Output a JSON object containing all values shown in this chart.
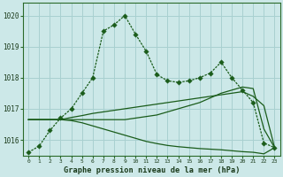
{
  "xlabel": "Graphe pression niveau de la mer (hPa)",
  "bg_color": "#cce8e8",
  "grid_color": "#a8d0d0",
  "line_color": "#1a5c1a",
  "x_values": [
    0,
    1,
    2,
    3,
    4,
    5,
    6,
    7,
    8,
    9,
    10,
    11,
    12,
    13,
    14,
    15,
    16,
    17,
    18,
    19,
    20,
    21,
    22,
    23
  ],
  "line1": [
    1015.6,
    1015.8,
    1016.3,
    1016.7,
    1017.0,
    1017.5,
    1018.0,
    1019.5,
    1019.7,
    1020.0,
    1019.4,
    1018.85,
    1018.1,
    1017.9,
    1017.85,
    1017.9,
    1018.0,
    1018.15,
    1018.5,
    1018.0,
    1017.6,
    1017.2,
    1015.9,
    1015.75
  ],
  "line2": [
    1016.65,
    1016.65,
    1016.65,
    1016.65,
    1016.65,
    1016.65,
    1016.65,
    1016.65,
    1016.65,
    1016.65,
    1016.7,
    1016.75,
    1016.8,
    1016.9,
    1017.0,
    1017.1,
    1017.2,
    1017.35,
    1017.5,
    1017.6,
    1017.7,
    1017.65,
    1016.35,
    1015.75
  ],
  "line3": [
    1016.65,
    1016.65,
    1016.65,
    1016.65,
    1016.72,
    1016.78,
    1016.85,
    1016.9,
    1016.95,
    1017.0,
    1017.05,
    1017.1,
    1017.15,
    1017.2,
    1017.25,
    1017.3,
    1017.35,
    1017.4,
    1017.45,
    1017.5,
    1017.55,
    1017.4,
    1017.1,
    1015.75
  ],
  "line4": [
    1016.65,
    1016.65,
    1016.65,
    1016.65,
    1016.62,
    1016.55,
    1016.45,
    1016.35,
    1016.25,
    1016.15,
    1016.05,
    1015.95,
    1015.88,
    1015.82,
    1015.78,
    1015.75,
    1015.72,
    1015.7,
    1015.68,
    1015.65,
    1015.62,
    1015.6,
    1015.55,
    1015.75
  ],
  "ylim": [
    1015.5,
    1020.4
  ],
  "yticks": [
    1016,
    1017,
    1018,
    1019,
    1020
  ],
  "xticks": [
    0,
    1,
    2,
    3,
    4,
    5,
    6,
    7,
    8,
    9,
    10,
    11,
    12,
    13,
    14,
    15,
    16,
    17,
    18,
    19,
    20,
    21,
    22,
    23
  ],
  "markersize": 2.8
}
